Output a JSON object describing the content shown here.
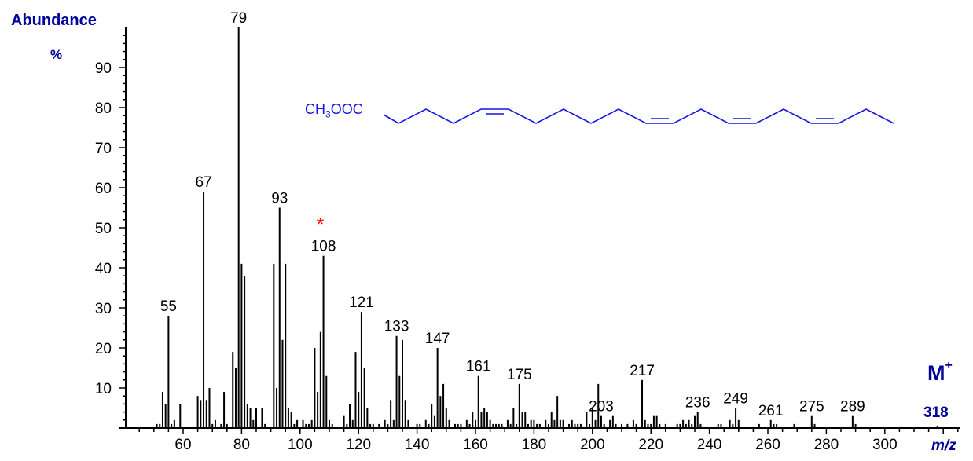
{
  "chart_data": {
    "type": "bar",
    "title": "",
    "xlabel": "m/z",
    "ylabel": "Abundance %",
    "xlim": [
      42,
      325
    ],
    "ylim": [
      0,
      100
    ],
    "x_ticks": [
      60,
      80,
      100,
      120,
      140,
      160,
      180,
      200,
      220,
      240,
      260,
      280,
      300
    ],
    "y_ticks": [
      10,
      20,
      30,
      40,
      50,
      60,
      70,
      80,
      90
    ],
    "grid": false,
    "legend": null,
    "peaks": [
      {
        "mz": 51,
        "ab": 1
      },
      {
        "mz": 52,
        "ab": 1
      },
      {
        "mz": 53,
        "ab": 9
      },
      {
        "mz": 54,
        "ab": 6
      },
      {
        "mz": 55,
        "ab": 28
      },
      {
        "mz": 56,
        "ab": 1
      },
      {
        "mz": 57,
        "ab": 2
      },
      {
        "mz": 59,
        "ab": 6
      },
      {
        "mz": 65,
        "ab": 8
      },
      {
        "mz": 66,
        "ab": 7
      },
      {
        "mz": 67,
        "ab": 59
      },
      {
        "mz": 68,
        "ab": 7
      },
      {
        "mz": 69,
        "ab": 10
      },
      {
        "mz": 70,
        "ab": 1
      },
      {
        "mz": 71,
        "ab": 2
      },
      {
        "mz": 73,
        "ab": 1
      },
      {
        "mz": 74,
        "ab": 9
      },
      {
        "mz": 75,
        "ab": 1
      },
      {
        "mz": 77,
        "ab": 19
      },
      {
        "mz": 78,
        "ab": 15
      },
      {
        "mz": 79,
        "ab": 100
      },
      {
        "mz": 80,
        "ab": 41
      },
      {
        "mz": 81,
        "ab": 38
      },
      {
        "mz": 82,
        "ab": 6
      },
      {
        "mz": 83,
        "ab": 5
      },
      {
        "mz": 84,
        "ab": 2
      },
      {
        "mz": 85,
        "ab": 5
      },
      {
        "mz": 87,
        "ab": 5
      },
      {
        "mz": 88,
        "ab": 1
      },
      {
        "mz": 91,
        "ab": 41
      },
      {
        "mz": 92,
        "ab": 10
      },
      {
        "mz": 93,
        "ab": 55
      },
      {
        "mz": 94,
        "ab": 22
      },
      {
        "mz": 95,
        "ab": 41
      },
      {
        "mz": 96,
        "ab": 5
      },
      {
        "mz": 97,
        "ab": 4
      },
      {
        "mz": 98,
        "ab": 1
      },
      {
        "mz": 99,
        "ab": 2
      },
      {
        "mz": 101,
        "ab": 2
      },
      {
        "mz": 102,
        "ab": 1
      },
      {
        "mz": 103,
        "ab": 1
      },
      {
        "mz": 104,
        "ab": 2
      },
      {
        "mz": 105,
        "ab": 20
      },
      {
        "mz": 106,
        "ab": 9
      },
      {
        "mz": 107,
        "ab": 24
      },
      {
        "mz": 108,
        "ab": 43
      },
      {
        "mz": 109,
        "ab": 13
      },
      {
        "mz": 110,
        "ab": 2
      },
      {
        "mz": 111,
        "ab": 1
      },
      {
        "mz": 115,
        "ab": 3
      },
      {
        "mz": 116,
        "ab": 1
      },
      {
        "mz": 117,
        "ab": 6
      },
      {
        "mz": 118,
        "ab": 2
      },
      {
        "mz": 119,
        "ab": 19
      },
      {
        "mz": 120,
        "ab": 9
      },
      {
        "mz": 121,
        "ab": 29
      },
      {
        "mz": 122,
        "ab": 15
      },
      {
        "mz": 123,
        "ab": 5
      },
      {
        "mz": 124,
        "ab": 1
      },
      {
        "mz": 125,
        "ab": 1
      },
      {
        "mz": 127,
        "ab": 1
      },
      {
        "mz": 129,
        "ab": 2
      },
      {
        "mz": 130,
        "ab": 1
      },
      {
        "mz": 131,
        "ab": 7
      },
      {
        "mz": 132,
        "ab": 2
      },
      {
        "mz": 133,
        "ab": 23
      },
      {
        "mz": 134,
        "ab": 13
      },
      {
        "mz": 135,
        "ab": 22
      },
      {
        "mz": 136,
        "ab": 7
      },
      {
        "mz": 137,
        "ab": 2
      },
      {
        "mz": 140,
        "ab": 1
      },
      {
        "mz": 141,
        "ab": 1
      },
      {
        "mz": 143,
        "ab": 2
      },
      {
        "mz": 144,
        "ab": 1
      },
      {
        "mz": 145,
        "ab": 6
      },
      {
        "mz": 146,
        "ab": 3
      },
      {
        "mz": 147,
        "ab": 20
      },
      {
        "mz": 148,
        "ab": 8
      },
      {
        "mz": 149,
        "ab": 11
      },
      {
        "mz": 150,
        "ab": 5
      },
      {
        "mz": 151,
        "ab": 2
      },
      {
        "mz": 153,
        "ab": 1
      },
      {
        "mz": 154,
        "ab": 1
      },
      {
        "mz": 155,
        "ab": 1
      },
      {
        "mz": 157,
        "ab": 2
      },
      {
        "mz": 158,
        "ab": 1
      },
      {
        "mz": 159,
        "ab": 4
      },
      {
        "mz": 160,
        "ab": 2
      },
      {
        "mz": 161,
        "ab": 13
      },
      {
        "mz": 162,
        "ab": 4
      },
      {
        "mz": 163,
        "ab": 5
      },
      {
        "mz": 164,
        "ab": 4
      },
      {
        "mz": 165,
        "ab": 2
      },
      {
        "mz": 166,
        "ab": 1
      },
      {
        "mz": 167,
        "ab": 1
      },
      {
        "mz": 168,
        "ab": 1
      },
      {
        "mz": 169,
        "ab": 1
      },
      {
        "mz": 171,
        "ab": 2
      },
      {
        "mz": 172,
        "ab": 1
      },
      {
        "mz": 173,
        "ab": 5
      },
      {
        "mz": 174,
        "ab": 1
      },
      {
        "mz": 175,
        "ab": 11
      },
      {
        "mz": 176,
        "ab": 4
      },
      {
        "mz": 177,
        "ab": 4
      },
      {
        "mz": 178,
        "ab": 1
      },
      {
        "mz": 179,
        "ab": 2
      },
      {
        "mz": 180,
        "ab": 2
      },
      {
        "mz": 181,
        "ab": 1
      },
      {
        "mz": 182,
        "ab": 1
      },
      {
        "mz": 184,
        "ab": 2
      },
      {
        "mz": 185,
        "ab": 1
      },
      {
        "mz": 186,
        "ab": 4
      },
      {
        "mz": 187,
        "ab": 2
      },
      {
        "mz": 188,
        "ab": 8
      },
      {
        "mz": 189,
        "ab": 2
      },
      {
        "mz": 190,
        "ab": 2
      },
      {
        "mz": 192,
        "ab": 1
      },
      {
        "mz": 193,
        "ab": 2
      },
      {
        "mz": 194,
        "ab": 1
      },
      {
        "mz": 195,
        "ab": 1
      },
      {
        "mz": 196,
        "ab": 1
      },
      {
        "mz": 198,
        "ab": 4
      },
      {
        "mz": 199,
        "ab": 1
      },
      {
        "mz": 200,
        "ab": 5
      },
      {
        "mz": 201,
        "ab": 2
      },
      {
        "mz": 202,
        "ab": 11
      },
      {
        "mz": 203,
        "ab": 3
      },
      {
        "mz": 204,
        "ab": 1
      },
      {
        "mz": 206,
        "ab": 2
      },
      {
        "mz": 207,
        "ab": 3
      },
      {
        "mz": 208,
        "ab": 1
      },
      {
        "mz": 210,
        "ab": 1
      },
      {
        "mz": 212,
        "ab": 1
      },
      {
        "mz": 214,
        "ab": 2
      },
      {
        "mz": 215,
        "ab": 1
      },
      {
        "mz": 217,
        "ab": 12
      },
      {
        "mz": 218,
        "ab": 2
      },
      {
        "mz": 219,
        "ab": 1
      },
      {
        "mz": 220,
        "ab": 1
      },
      {
        "mz": 221,
        "ab": 3
      },
      {
        "mz": 222,
        "ab": 3
      },
      {
        "mz": 223,
        "ab": 1
      },
      {
        "mz": 225,
        "ab": 1
      },
      {
        "mz": 229,
        "ab": 1
      },
      {
        "mz": 230,
        "ab": 1
      },
      {
        "mz": 231,
        "ab": 2
      },
      {
        "mz": 232,
        "ab": 1
      },
      {
        "mz": 233,
        "ab": 2
      },
      {
        "mz": 234,
        "ab": 1
      },
      {
        "mz": 235,
        "ab": 3
      },
      {
        "mz": 236,
        "ab": 4
      },
      {
        "mz": 237,
        "ab": 1
      },
      {
        "mz": 243,
        "ab": 1
      },
      {
        "mz": 244,
        "ab": 1
      },
      {
        "mz": 247,
        "ab": 2
      },
      {
        "mz": 248,
        "ab": 1
      },
      {
        "mz": 249,
        "ab": 5
      },
      {
        "mz": 250,
        "ab": 2
      },
      {
        "mz": 257,
        "ab": 1
      },
      {
        "mz": 261,
        "ab": 2
      },
      {
        "mz": 262,
        "ab": 1
      },
      {
        "mz": 263,
        "ab": 1
      },
      {
        "mz": 269,
        "ab": 1
      },
      {
        "mz": 275,
        "ab": 3
      },
      {
        "mz": 276,
        "ab": 1
      },
      {
        "mz": 289,
        "ab": 3
      },
      {
        "mz": 290,
        "ab": 1
      },
      {
        "mz": 318,
        "ab": 0.3
      }
    ],
    "peak_labels": [
      {
        "mz": 55,
        "label": "55"
      },
      {
        "mz": 67,
        "label": "67"
      },
      {
        "mz": 79,
        "label": "79"
      },
      {
        "mz": 93,
        "label": "93"
      },
      {
        "mz": 108,
        "label": "108",
        "marker": "*"
      },
      {
        "mz": 121,
        "label": "121"
      },
      {
        "mz": 133,
        "label": "133"
      },
      {
        "mz": 147,
        "label": "147"
      },
      {
        "mz": 161,
        "label": "161"
      },
      {
        "mz": 175,
        "label": "175"
      },
      {
        "mz": 203,
        "label": "203"
      },
      {
        "mz": 217,
        "label": "217"
      },
      {
        "mz": 236,
        "label": "236"
      },
      {
        "mz": 249,
        "label": "249"
      },
      {
        "mz": 261,
        "label": "261"
      },
      {
        "mz": 275,
        "label": "275"
      },
      {
        "mz": 289,
        "label": "289"
      }
    ],
    "annotations": [
      {
        "text": "M+",
        "position": "right"
      },
      {
        "text": "318",
        "mz": 318,
        "note": "molecular ion"
      },
      {
        "text": "*",
        "mz": 108,
        "color": "#ff0000"
      }
    ]
  },
  "labels": {
    "ylabel_title": "Abundance",
    "ylabel_unit": "%",
    "xlabel": "m/z",
    "molecular_ion": "M",
    "molecular_ion_charge": "+",
    "molecular_ion_mz": "318",
    "marker": "*"
  },
  "structure": {
    "formula_prefix": "CH",
    "formula_sub": "3",
    "formula_suffix": "OOC",
    "color": "#1414e6"
  },
  "colors": {
    "axis_label": "#00009c",
    "peak": "#000000",
    "marker": "#ff0000",
    "structure": "#1414e6"
  }
}
